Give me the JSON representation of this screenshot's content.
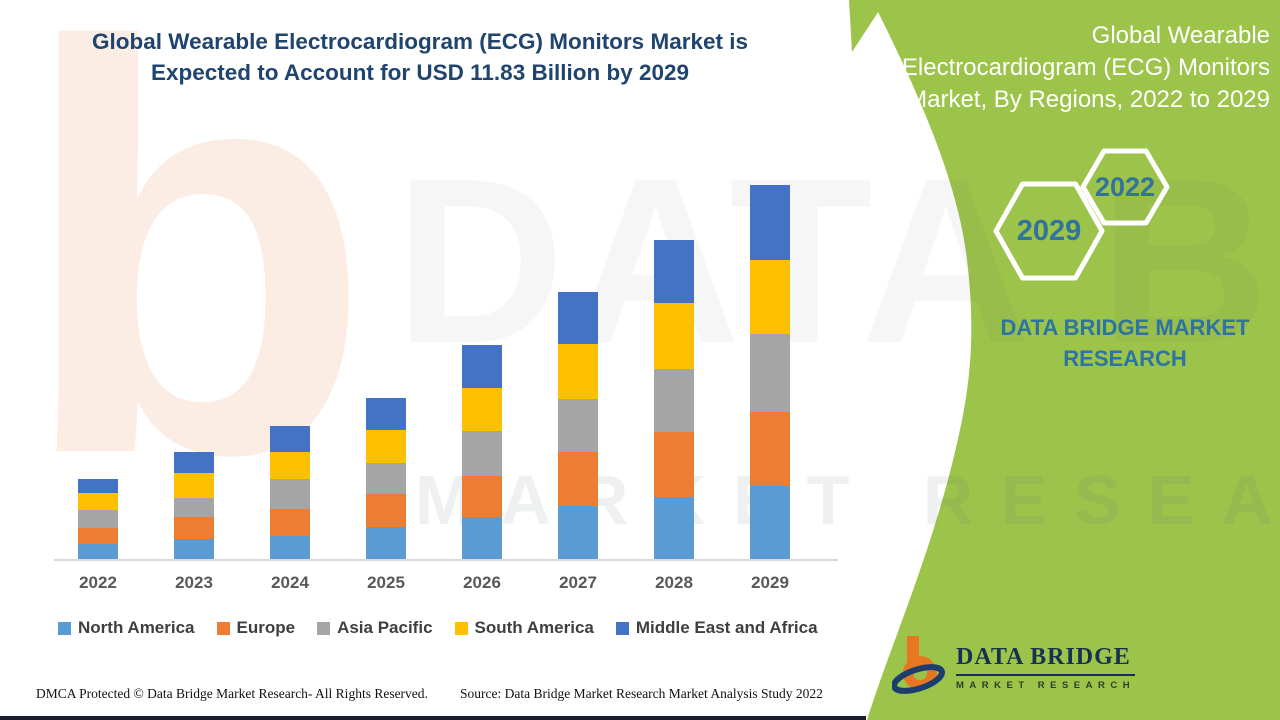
{
  "header": {
    "title_line1": "Global Wearable Electrocardiogram (ECG) Monitors Market is",
    "title_line2": "Expected to Account for USD 11.83 Billion by 2029"
  },
  "chart_data": {
    "type": "bar",
    "stacked": true,
    "title": "Global Wearable Electrocardiogram (ECG) Monitors Market is Expected to Account for USD 11.83 Billion by 2029",
    "value_unit": "USD Billion",
    "categories": [
      "2022",
      "2023",
      "2024",
      "2025",
      "2026",
      "2027",
      "2028",
      "2029"
    ],
    "series": [
      {
        "name": "North America",
        "color": "#5B9BD5",
        "values": [
          0.51,
          0.66,
          0.76,
          1.05,
          1.36,
          1.7,
          1.99,
          2.34
        ]
      },
      {
        "name": "Europe",
        "color": "#ED7D31",
        "values": [
          0.51,
          0.7,
          0.84,
          1.02,
          1.29,
          1.71,
          2.05,
          2.34
        ]
      },
      {
        "name": "Asia Pacific",
        "color": "#A5A5A5",
        "values": [
          0.57,
          0.59,
          0.95,
          0.98,
          1.42,
          1.66,
          1.98,
          2.44
        ]
      },
      {
        "name": "South America",
        "color": "#FFC000",
        "values": [
          0.52,
          0.79,
          0.86,
          1.04,
          1.35,
          1.74,
          2.1,
          2.35
        ]
      },
      {
        "name": "Middle East and Africa",
        "color": "#4472C4",
        "values": [
          0.45,
          0.66,
          0.82,
          1.01,
          1.36,
          1.65,
          1.99,
          2.36
        ]
      }
    ],
    "totals": [
      2.56,
      3.4,
      4.23,
      5.1,
      6.78,
      8.46,
      10.11,
      11.83
    ],
    "xlabel": "",
    "ylabel": "",
    "ylim": [
      0,
      12
    ],
    "grid": false,
    "legend_position": "bottom"
  },
  "side_panel": {
    "bg_color": "#9CC34A",
    "title_lines": {
      "0": "Global Wearable",
      "1": "Electrocardiogram (ECG) Monitors",
      "2": "Market, By Regions, 2022 to 2029"
    },
    "badge_back": "2022",
    "badge_front": "2029",
    "brand_line1": "DATA BRIDGE MARKET",
    "brand_line2": "RESEARCH",
    "logo_title": "DATA BRIDGE",
    "logo_subtitle": "MARKET RESEARCH"
  },
  "footer": {
    "dmca": "DMCA Protected © Data Bridge Market Research- All Rights Reserved.",
    "source": "Source: Data Bridge Market Research Market Analysis Study 2022"
  },
  "watermarks": {
    "letter": "b",
    "brand": "DATA BRIDGE",
    "market": "MARKET RESEARCH"
  }
}
